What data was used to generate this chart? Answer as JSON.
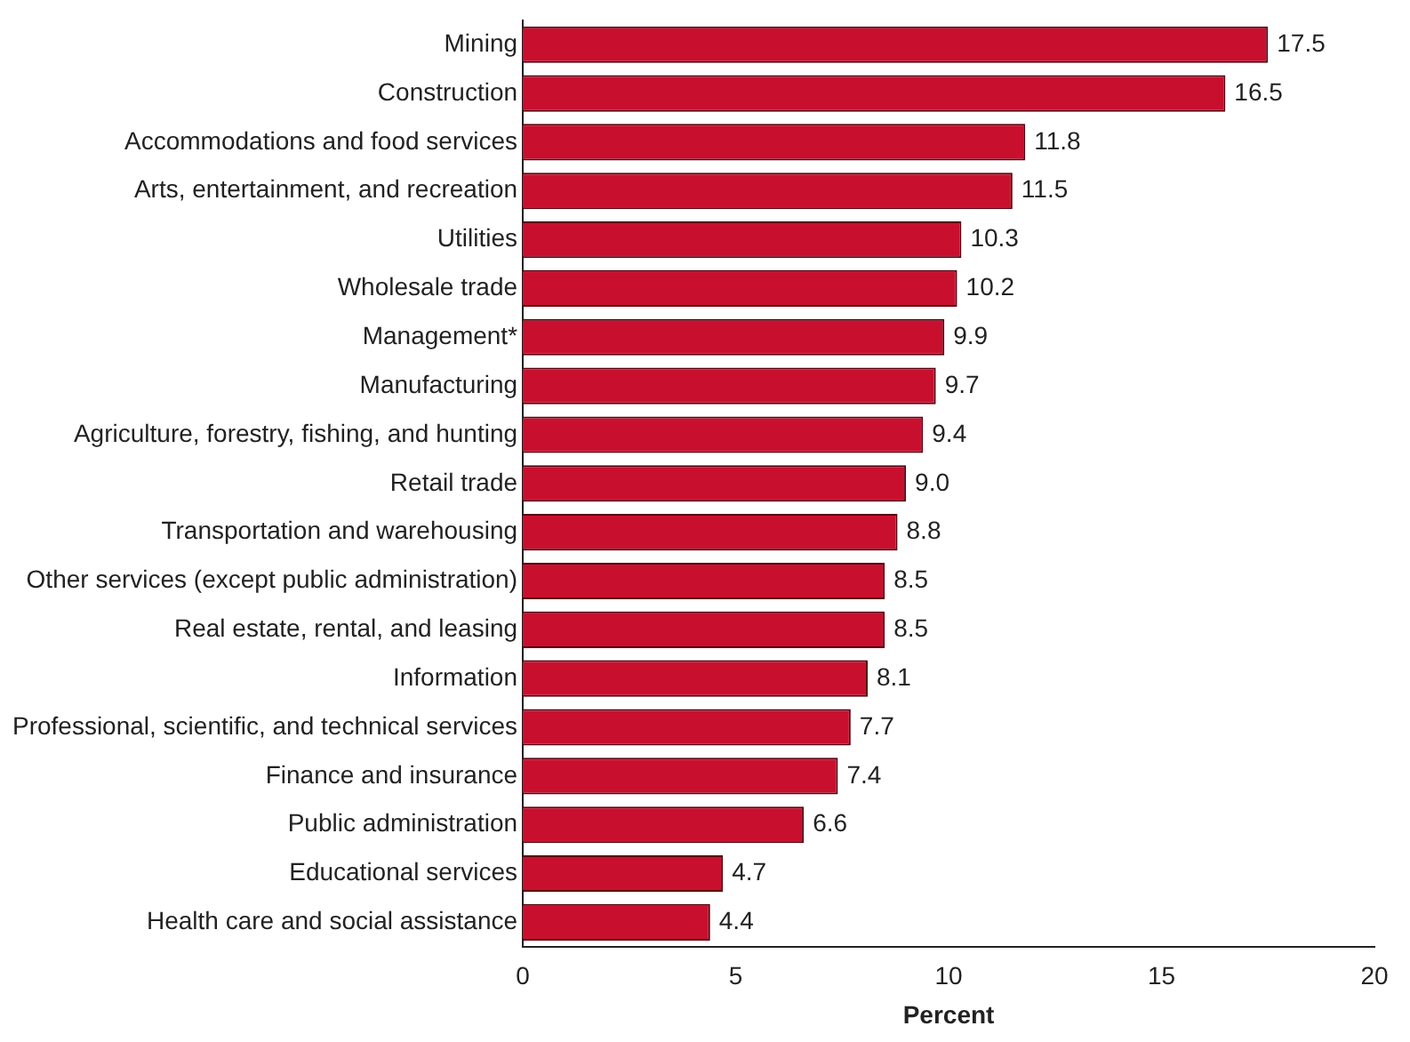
{
  "chart_data": {
    "type": "bar",
    "orientation": "horizontal",
    "xlabel": "Percent",
    "categories": [
      "Mining",
      "Construction",
      "Accommodations and food services",
      "Arts, entertainment, and recreation",
      "Utilities",
      "Wholesale trade",
      "Management*",
      "Manufacturing",
      "Agriculture, forestry, fishing, and hunting",
      "Retail trade",
      "Transportation and warehousing",
      "Other services (except public administration)",
      "Real estate, rental, and leasing",
      "Information",
      "Professional, scientific, and technical services",
      "Finance and insurance",
      "Public administration",
      "Educational services",
      "Health care and social assistance"
    ],
    "values": [
      17.5,
      16.5,
      11.8,
      11.5,
      10.3,
      10.2,
      9.9,
      9.7,
      9.4,
      9.0,
      8.8,
      8.5,
      8.5,
      8.1,
      7.7,
      7.4,
      6.6,
      4.7,
      4.4
    ],
    "value_labels": [
      "17.5",
      "16.5",
      "11.8",
      "11.5",
      "10.3",
      "10.2",
      "9.9",
      "9.7",
      "9.4",
      "9.0",
      "8.8",
      "8.5",
      "8.5",
      "8.1",
      "7.7",
      "7.4",
      "6.6",
      "4.7",
      "4.4"
    ],
    "color": "#c8102e",
    "xlim": [
      0,
      20
    ],
    "xticks": [
      0,
      5,
      10,
      15,
      20
    ],
    "grid": false,
    "legend": false
  }
}
